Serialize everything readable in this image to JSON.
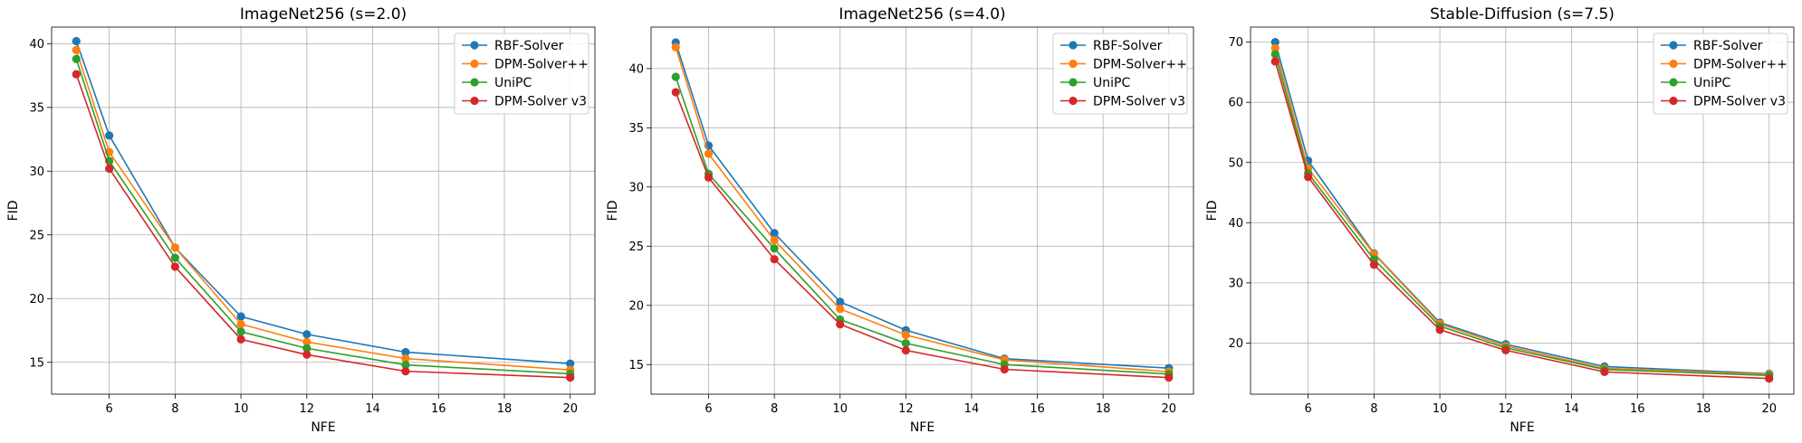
{
  "colors": [
    "#1f77b4",
    "#ff7f0e",
    "#2ca02c",
    "#d62728"
  ],
  "chart_data": [
    {
      "type": "line",
      "title": "ImageNet256 (s=2.0)",
      "xlabel": "NFE",
      "ylabel": "FID",
      "xlim": [
        4.25,
        20.75
      ],
      "ylim": [
        12.5,
        41.3
      ],
      "xticks": [
        6,
        8,
        10,
        12,
        14,
        16,
        18,
        20
      ],
      "yticks": [
        15,
        20,
        25,
        30,
        35,
        40
      ],
      "grid": true,
      "legend_position": "upper right",
      "x": [
        5,
        6,
        8,
        10,
        12,
        15,
        20
      ],
      "series": [
        {
          "name": "RBF-Solver",
          "values": [
            40.2,
            32.8,
            24.0,
            18.6,
            17.2,
            15.8,
            14.9
          ]
        },
        {
          "name": "DPM-Solver++",
          "values": [
            39.5,
            31.5,
            24.0,
            18.0,
            16.6,
            15.3,
            14.4
          ]
        },
        {
          "name": "UniPC",
          "values": [
            38.8,
            30.8,
            23.2,
            17.4,
            16.1,
            14.8,
            14.1
          ]
        },
        {
          "name": "DPM-Solver v3",
          "values": [
            37.6,
            30.2,
            22.5,
            16.8,
            15.6,
            14.3,
            13.8
          ]
        }
      ]
    },
    {
      "type": "line",
      "title": "ImageNet256 (s=4.0)",
      "xlabel": "NFE",
      "ylabel": "FID",
      "xlim": [
        4.25,
        20.75
      ],
      "ylim": [
        12.5,
        43.5
      ],
      "xticks": [
        6,
        8,
        10,
        12,
        14,
        16,
        18,
        20
      ],
      "yticks": [
        15,
        20,
        25,
        30,
        35,
        40
      ],
      "grid": true,
      "legend_position": "upper right",
      "x": [
        5,
        6,
        8,
        10,
        12,
        15,
        20
      ],
      "series": [
        {
          "name": "RBF-Solver",
          "values": [
            42.2,
            33.5,
            26.1,
            20.3,
            17.9,
            15.5,
            14.7
          ]
        },
        {
          "name": "DPM-Solver++",
          "values": [
            41.8,
            32.8,
            25.5,
            19.7,
            17.5,
            15.4,
            14.4
          ]
        },
        {
          "name": "UniPC",
          "values": [
            39.3,
            31.1,
            24.8,
            18.8,
            16.8,
            15.0,
            14.2
          ]
        },
        {
          "name": "DPM-Solver v3",
          "values": [
            38.0,
            30.8,
            23.9,
            18.4,
            16.2,
            14.6,
            13.9
          ]
        }
      ]
    },
    {
      "type": "line",
      "title": "Stable-Diffusion (s=7.5)",
      "xlabel": "NFE",
      "ylabel": "FID",
      "xlim": [
        4.25,
        20.75
      ],
      "ylim": [
        11.5,
        72.5
      ],
      "xticks": [
        6,
        8,
        10,
        12,
        14,
        16,
        18,
        20
      ],
      "yticks": [
        20,
        30,
        40,
        50,
        60,
        70
      ],
      "grid": true,
      "legend_position": "upper right",
      "x": [
        5,
        6,
        8,
        10,
        12,
        15,
        20
      ],
      "series": [
        {
          "name": "RBF-Solver",
          "values": [
            70.0,
            50.3,
            34.9,
            23.4,
            19.8,
            16.1,
            14.9
          ]
        },
        {
          "name": "DPM-Solver++",
          "values": [
            69.0,
            49.0,
            34.8,
            23.2,
            19.5,
            15.8,
            14.8
          ]
        },
        {
          "name": "UniPC",
          "values": [
            68.0,
            48.2,
            33.9,
            22.8,
            19.2,
            15.6,
            14.6
          ]
        },
        {
          "name": "DPM-Solver v3",
          "values": [
            66.8,
            47.6,
            33.0,
            22.2,
            18.8,
            15.2,
            14.1
          ]
        }
      ]
    }
  ]
}
